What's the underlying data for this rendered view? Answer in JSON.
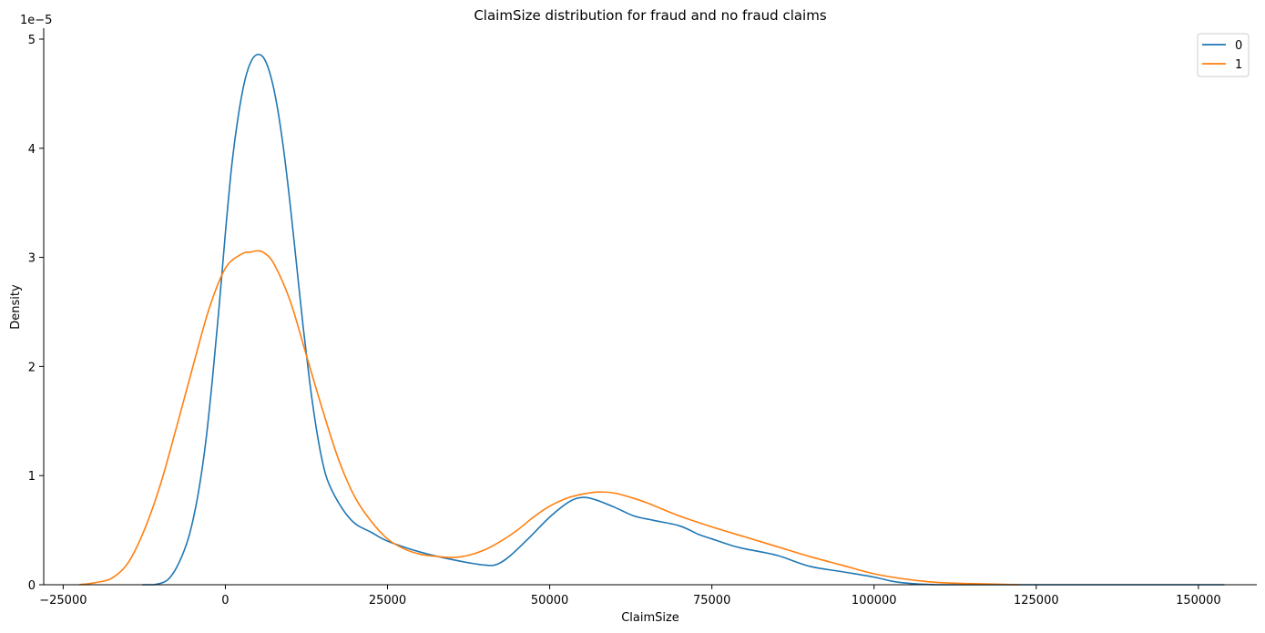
{
  "chart_data": {
    "type": "line",
    "title": "ClaimSize distribution for fraud and no fraud claims",
    "xlabel": "ClaimSize",
    "ylabel": "Density",
    "y_offset_label": "1e−5",
    "xlim": [
      -28000,
      159000
    ],
    "ylim": [
      0,
      5.1e-05
    ],
    "x_ticks": [
      {
        "value": -25000,
        "label": "−25000"
      },
      {
        "value": 0,
        "label": "0"
      },
      {
        "value": 25000,
        "label": "25000"
      },
      {
        "value": 50000,
        "label": "50000"
      },
      {
        "value": 75000,
        "label": "75000"
      },
      {
        "value": 100000,
        "label": "100000"
      },
      {
        "value": 125000,
        "label": "125000"
      },
      {
        "value": 150000,
        "label": "150000"
      }
    ],
    "y_ticks": [
      {
        "value": 0,
        "label": "0"
      },
      {
        "value": 1e-05,
        "label": "1"
      },
      {
        "value": 2e-05,
        "label": "2"
      },
      {
        "value": 3e-05,
        "label": "3"
      },
      {
        "value": 4e-05,
        "label": "4"
      },
      {
        "value": 5e-05,
        "label": "5"
      }
    ],
    "grid": false,
    "legend_position": "top-right",
    "series": [
      {
        "name": "0",
        "color": "#1f77b4",
        "x": [
          -12800,
          -11000,
          -9000,
          -7500,
          -6000,
          -5000,
          -4000,
          -3000,
          -2000,
          -1000,
          0,
          1000,
          2000,
          3000,
          4000,
          5000,
          6000,
          7000,
          8000,
          9000,
          10000,
          11000,
          12000,
          13000,
          14000,
          15000,
          16000,
          18000,
          20000,
          22500,
          25000,
          30000,
          35000,
          40000,
          42000,
          44000,
          47000,
          50000,
          53000,
          55000,
          57000,
          60000,
          63000,
          66000,
          70000,
          73000,
          75000,
          78000,
          80000,
          85000,
          90000,
          95000,
          100000,
          103000,
          106000,
          110000,
          115000,
          125000,
          140000,
          154000
        ],
        "y": [
          0.0,
          1e-09,
          4e-07,
          1.6e-06,
          3.7e-06,
          5.9e-06,
          9e-06,
          1.32e-05,
          1.88e-05,
          2.52e-05,
          3.22e-05,
          3.85e-05,
          4.3e-05,
          4.62e-05,
          4.8e-05,
          4.86e-05,
          4.82e-05,
          4.66e-05,
          4.38e-05,
          3.98e-05,
          3.48e-05,
          2.92e-05,
          2.36e-05,
          1.86e-05,
          1.44e-05,
          1.12e-05,
          9.2e-06,
          7e-06,
          5.6e-06,
          4.8e-06,
          4e-06,
          3e-06,
          2.3e-06,
          1.8e-06,
          1.9e-06,
          2.7e-06,
          4.4e-06,
          6.2e-06,
          7.6e-06,
          8e-06,
          7.8e-06,
          7.1e-06,
          6.3e-06,
          5.9e-06,
          5.4e-06,
          4.6e-06,
          4.2e-06,
          3.6e-06,
          3.3e-06,
          2.7e-06,
          1.7e-06,
          1.2e-06,
          7e-07,
          3e-07,
          1e-07,
          0.0,
          0.0,
          0.0,
          0.0,
          0.0
        ]
      },
      {
        "name": "1",
        "color": "#ff7f0e",
        "x": [
          -22500,
          -20000,
          -17500,
          -15000,
          -12500,
          -10000,
          -7500,
          -5000,
          -2500,
          0,
          2500,
          4000,
          5000,
          6000,
          7500,
          10000,
          12500,
          15000,
          17500,
          20000,
          22500,
          25000,
          27500,
          30000,
          32500,
          35000,
          37500,
          40000,
          42500,
          45000,
          47500,
          50000,
          52500,
          55000,
          57500,
          60000,
          62500,
          65000,
          70000,
          75000,
          80000,
          85000,
          90000,
          95000,
          100000,
          105000,
          110000,
          115000,
          122500
        ],
        "y": [
          0.0,
          2e-07,
          6e-07,
          2e-06,
          5e-06,
          9.2e-06,
          1.45e-05,
          2e-05,
          2.53e-05,
          2.9e-05,
          3.03e-05,
          3.05e-05,
          3.06e-05,
          3.04e-05,
          2.94e-05,
          2.6e-05,
          2.1e-05,
          1.6e-05,
          1.14e-05,
          8e-06,
          5.8e-06,
          4.2e-06,
          3.3e-06,
          2.8e-06,
          2.6e-06,
          2.5e-06,
          2.7e-06,
          3.2e-06,
          4e-06,
          5e-06,
          6.2e-06,
          7.2e-06,
          7.9e-06,
          8.3e-06,
          8.5e-06,
          8.4e-06,
          8e-06,
          7.5e-06,
          6.3e-06,
          5.3e-06,
          4.4e-06,
          3.5e-06,
          2.6e-06,
          1.8e-06,
          1e-06,
          5e-07,
          2e-07,
          1e-07,
          0.0
        ]
      }
    ]
  }
}
